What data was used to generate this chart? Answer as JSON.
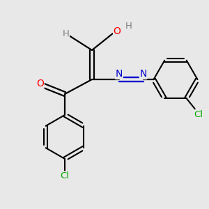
{
  "background_color": "#e8e8e8",
  "bond_color": "#000000",
  "atom_colors": {
    "O_red": "#ff0000",
    "N_blue": "#0000cc",
    "Cl_green": "#00aa00",
    "H_gray": "#808080"
  },
  "figsize": [
    3.0,
    3.0
  ],
  "dpi": 100,
  "xlim": [
    0,
    10
  ],
  "ylim": [
    0,
    10
  ]
}
